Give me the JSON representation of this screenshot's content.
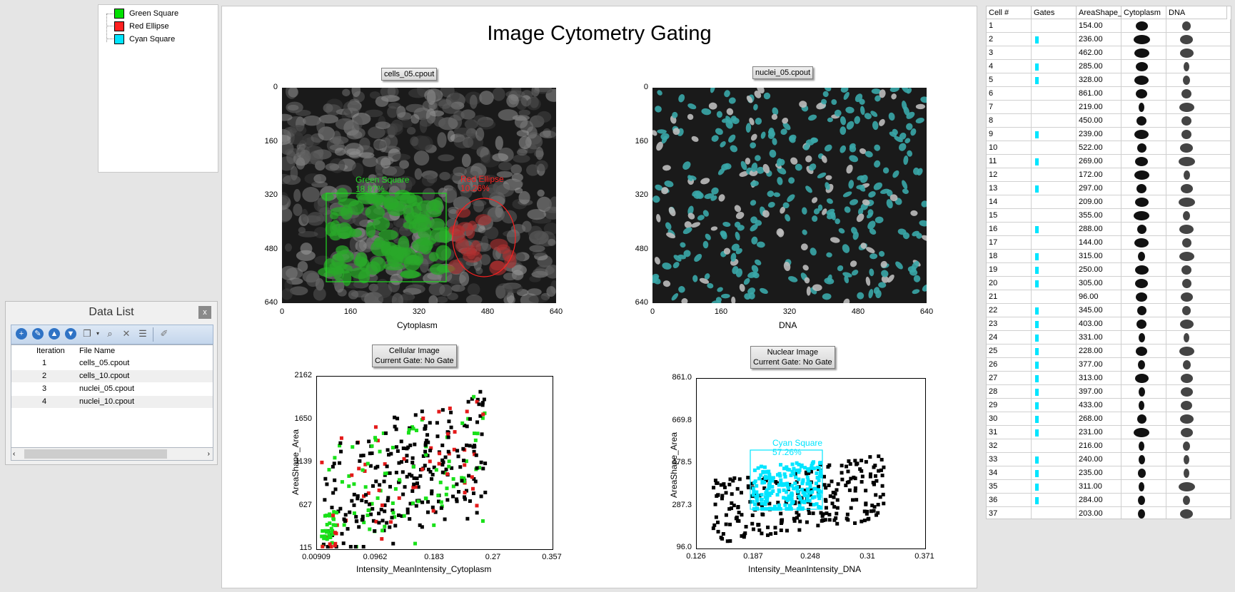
{
  "legend": {
    "items": [
      {
        "label": "Green Square",
        "color": "#00e000"
      },
      {
        "label": "Red Ellipse",
        "color": "#ff2020"
      },
      {
        "label": "Cyan Square",
        "color": "#00e5ff"
      }
    ]
  },
  "data_list": {
    "title": "Data List",
    "close_label": "x",
    "columns": [
      "Iteration",
      "File Name"
    ],
    "rows": [
      {
        "iteration": "1",
        "file": "cells_05.cpout"
      },
      {
        "iteration": "2",
        "file": "cells_10.cpout"
      },
      {
        "iteration": "3",
        "file": "nuclei_05.cpout"
      },
      {
        "iteration": "4",
        "file": "nuclei_10.cpout"
      }
    ],
    "toolbar_icons": [
      "add-icon",
      "wrench-icon",
      "up-icon",
      "down-icon",
      "copy-icon",
      "dropdown-icon",
      "zoom-icon",
      "delete-icon",
      "list-icon",
      "edit-icon"
    ]
  },
  "main": {
    "title": "Image Cytometry Gating",
    "image_cells": {
      "label": "cells_05.cpout",
      "xlabel": "Cytoplasm",
      "x_ticks": [
        "0",
        "160",
        "320",
        "480",
        "640"
      ],
      "y_ticks": [
        "0",
        "160",
        "320",
        "480",
        "640"
      ],
      "gates": [
        {
          "name": "Green Square",
          "percent": "18.87%",
          "color": "#00e000"
        },
        {
          "name": "Red Ellipse",
          "percent": "10.26%",
          "color": "#ff2020"
        }
      ]
    },
    "image_nuclei": {
      "label": "nuclei_05.cpout",
      "xlabel": "DNA",
      "x_ticks": [
        "0",
        "160",
        "320",
        "480",
        "640"
      ],
      "y_ticks": [
        "0",
        "160",
        "320",
        "480",
        "640"
      ]
    },
    "plot_cells": {
      "label_line1": "Cellular Image",
      "label_line2": "Current Gate: No Gate",
      "xlabel": "Intensity_MeanIntensity_Cytoplasm",
      "ylabel": "AreaShape_Area",
      "x_ticks": [
        "0.00909",
        "0.0962",
        "0.183",
        "0.27",
        "0.357"
      ],
      "y_ticks": [
        "115",
        "627",
        "1139",
        "1650",
        "2162"
      ]
    },
    "plot_nuclei": {
      "label_line1": "Nuclear Image",
      "label_line2": "Current Gate: No Gate",
      "xlabel": "Intensity_MeanIntensity_DNA",
      "ylabel": "AreaShape_Area",
      "x_ticks": [
        "0.126",
        "0.187",
        "0.248",
        "0.31",
        "0.371"
      ],
      "y_ticks": [
        "96.0",
        "287.3",
        "478.5",
        "669.8",
        "861.0"
      ],
      "gate": {
        "name": "Cyan Square",
        "percent": "57.26%",
        "color": "#00e5ff"
      }
    }
  },
  "table": {
    "columns": [
      "Cell #",
      "Gates",
      "AreaShape_",
      "Cytoplasm",
      "DNA"
    ],
    "rows": [
      {
        "cell": "1",
        "gate": false,
        "area": "154.00"
      },
      {
        "cell": "2",
        "gate": true,
        "area": "236.00"
      },
      {
        "cell": "3",
        "gate": false,
        "area": "462.00"
      },
      {
        "cell": "4",
        "gate": true,
        "area": "285.00"
      },
      {
        "cell": "5",
        "gate": true,
        "area": "328.00"
      },
      {
        "cell": "6",
        "gate": false,
        "area": "861.00"
      },
      {
        "cell": "7",
        "gate": false,
        "area": "219.00"
      },
      {
        "cell": "8",
        "gate": false,
        "area": "450.00"
      },
      {
        "cell": "9",
        "gate": true,
        "area": "239.00"
      },
      {
        "cell": "10",
        "gate": false,
        "area": "522.00"
      },
      {
        "cell": "11",
        "gate": true,
        "area": "269.00"
      },
      {
        "cell": "12",
        "gate": false,
        "area": "172.00"
      },
      {
        "cell": "13",
        "gate": true,
        "area": "297.00"
      },
      {
        "cell": "14",
        "gate": false,
        "area": "209.00"
      },
      {
        "cell": "15",
        "gate": false,
        "area": "355.00"
      },
      {
        "cell": "16",
        "gate": true,
        "area": "288.00"
      },
      {
        "cell": "17",
        "gate": false,
        "area": "144.00"
      },
      {
        "cell": "18",
        "gate": true,
        "area": "315.00"
      },
      {
        "cell": "19",
        "gate": true,
        "area": "250.00"
      },
      {
        "cell": "20",
        "gate": true,
        "area": "305.00"
      },
      {
        "cell": "21",
        "gate": false,
        "area": "96.00"
      },
      {
        "cell": "22",
        "gate": true,
        "area": "345.00"
      },
      {
        "cell": "23",
        "gate": true,
        "area": "403.00"
      },
      {
        "cell": "24",
        "gate": true,
        "area": "331.00"
      },
      {
        "cell": "25",
        "gate": true,
        "area": "228.00"
      },
      {
        "cell": "26",
        "gate": true,
        "area": "377.00"
      },
      {
        "cell": "27",
        "gate": true,
        "area": "313.00"
      },
      {
        "cell": "28",
        "gate": true,
        "area": "397.00"
      },
      {
        "cell": "29",
        "gate": true,
        "area": "433.00"
      },
      {
        "cell": "30",
        "gate": true,
        "area": "268.00"
      },
      {
        "cell": "31",
        "gate": true,
        "area": "231.00"
      },
      {
        "cell": "32",
        "gate": false,
        "area": "216.00"
      },
      {
        "cell": "33",
        "gate": true,
        "area": "240.00"
      },
      {
        "cell": "34",
        "gate": true,
        "area": "235.00"
      },
      {
        "cell": "35",
        "gate": true,
        "area": "311.00"
      },
      {
        "cell": "36",
        "gate": true,
        "area": "284.00"
      },
      {
        "cell": "37",
        "gate": false,
        "area": "203.00"
      }
    ]
  }
}
